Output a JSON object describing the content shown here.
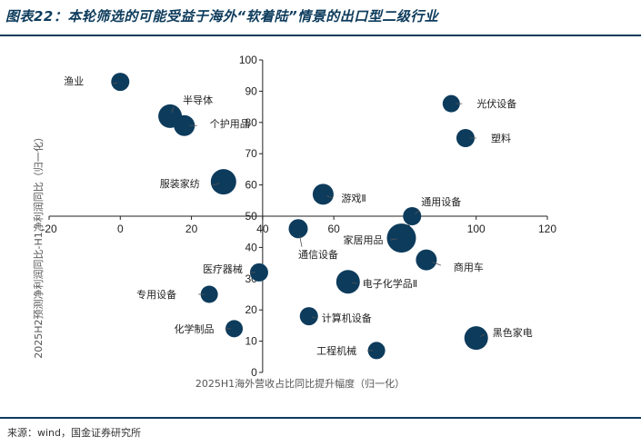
{
  "header": {
    "title": "图表22：本轮筛选的可能受益于海外“软着陆”情景的出口型二级行业"
  },
  "footer": {
    "source": "来源：wind，国金证券研究所"
  },
  "colors": {
    "bubble": "#0d3b5c",
    "rule": "#0d3b5c"
  },
  "chart_data": {
    "type": "scatter",
    "xlabel": "2025H1海外营收占比同比提升幅度（归一化）",
    "ylabel": "2025H2预测净利润同比-H1净利润同比（归一化）",
    "xlim": [
      -20,
      120
    ],
    "ylim": [
      0,
      100
    ],
    "xticks": [
      -20,
      0,
      20,
      40,
      60,
      80,
      100,
      120
    ],
    "yticks": [
      0,
      10,
      20,
      30,
      40,
      50,
      60,
      70,
      80,
      90,
      100
    ],
    "grid": false,
    "legend": "none",
    "points": [
      {
        "label": "渔业",
        "x": 0,
        "y": 93,
        "size": 1.0
      },
      {
        "label": "半导体",
        "x": 14,
        "y": 82,
        "size": 1.3
      },
      {
        "label": "个护用品",
        "x": 18,
        "y": 79,
        "size": 1.15
      },
      {
        "label": "服装家纺",
        "x": 29,
        "y": 61,
        "size": 1.4
      },
      {
        "label": "光伏设备",
        "x": 93,
        "y": 86,
        "size": 0.95
      },
      {
        "label": "塑料",
        "x": 97,
        "y": 75,
        "size": 1.0
      },
      {
        "label": "游戏Ⅱ",
        "x": 57,
        "y": 57,
        "size": 1.15
      },
      {
        "label": "通用设备",
        "x": 82,
        "y": 50,
        "size": 1.0
      },
      {
        "label": "通信设备",
        "x": 50,
        "y": 46,
        "size": 1.05
      },
      {
        "label": "家居用品",
        "x": 79,
        "y": 43,
        "size": 1.6
      },
      {
        "label": "商用车",
        "x": 86,
        "y": 36,
        "size": 1.15
      },
      {
        "label": "医疗器械",
        "x": 39,
        "y": 32,
        "size": 1.0
      },
      {
        "label": "电子化学品Ⅱ",
        "x": 64,
        "y": 29,
        "size": 1.3
      },
      {
        "label": "专用设备",
        "x": 25,
        "y": 25,
        "size": 0.95
      },
      {
        "label": "计算机设备",
        "x": 53,
        "y": 18,
        "size": 1.0
      },
      {
        "label": "化学制品",
        "x": 32,
        "y": 14,
        "size": 0.95
      },
      {
        "label": "黑色家电",
        "x": 100,
        "y": 11,
        "size": 1.3
      },
      {
        "label": "工程机械",
        "x": 72,
        "y": 7,
        "size": 0.95
      }
    ]
  }
}
